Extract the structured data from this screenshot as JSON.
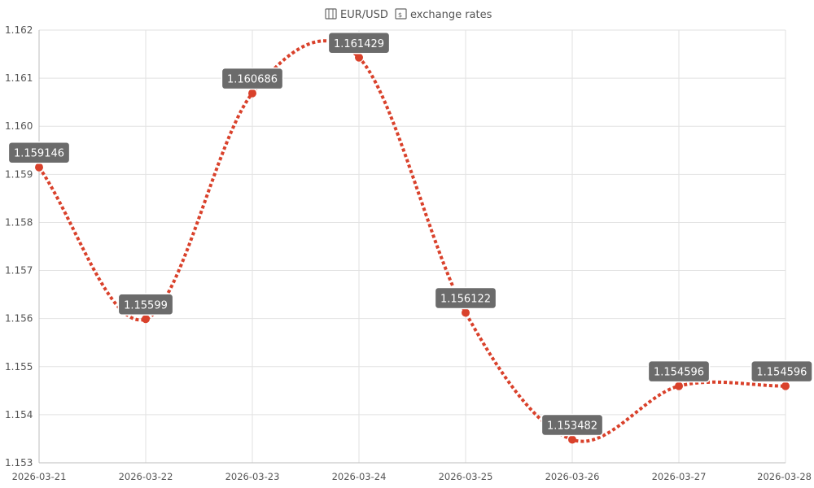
{
  "title": {
    "left_icon": "map-icon",
    "text": "EUR/USD",
    "right_icon": "dollar-banknote-icon",
    "suffix": "exchange rates"
  },
  "colors": {
    "line": "#d9412b",
    "point": "#d9412b",
    "label_bg": "#6b6b6b",
    "label_border": "#ffffff",
    "grid": "#e2e2e2",
    "text": "#555555"
  },
  "chart_data": {
    "type": "line",
    "title": "EUR/USD exchange rates",
    "x": [
      "2026-03-21",
      "2026-03-22",
      "2026-03-23",
      "2026-03-24",
      "2026-03-25",
      "2026-03-26",
      "2026-03-27",
      "2026-03-28"
    ],
    "series": [
      {
        "values": [
          1.159146,
          1.15599,
          1.160686,
          1.161429,
          1.156122,
          1.153482,
          1.154596,
          1.154596
        ]
      }
    ],
    "data_labels": [
      "1.159146",
      "1.15599",
      "1.160686",
      "1.161429",
      "1.156122",
      "1.153482",
      "1.154596",
      "1.154596"
    ],
    "ylim": [
      1.153,
      1.162
    ],
    "y_ticks": [
      "1.162",
      "1.161",
      "1.160",
      "1.159",
      "1.158",
      "1.157",
      "1.156",
      "1.155",
      "1.154",
      "1.153"
    ],
    "line_style": "dotted",
    "smooth": true,
    "grid": true,
    "legend": "none"
  }
}
